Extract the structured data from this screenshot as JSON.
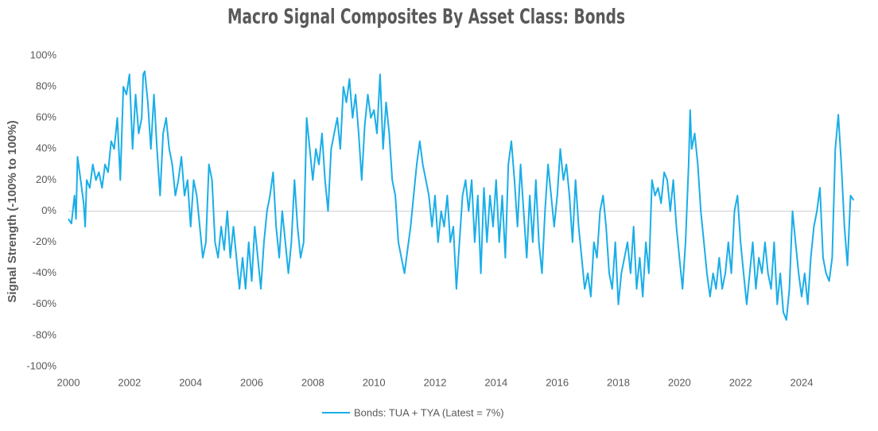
{
  "chart_data": {
    "type": "line",
    "title": "Macro Signal Composites By Asset Class: Bonds",
    "y_label": "Signal Strength (-100% to 100%)",
    "xlim": [
      2000,
      2025.9
    ],
    "xticks": [
      2000,
      2002,
      2004,
      2006,
      2008,
      2010,
      2012,
      2014,
      2016,
      2018,
      2020,
      2022,
      2024
    ],
    "ylim": [
      -100,
      100
    ],
    "yticks": [
      {
        "value": -100,
        "label": "-100%"
      },
      {
        "value": -80,
        "label": "-80%"
      },
      {
        "value": -60,
        "label": "-60%"
      },
      {
        "value": -40,
        "label": "-40%"
      },
      {
        "value": -20,
        "label": "-20%"
      },
      {
        "value": 0,
        "label": "0%"
      },
      {
        "value": 20,
        "label": "20%"
      },
      {
        "value": 40,
        "label": "40%"
      },
      {
        "value": 60,
        "label": "60%"
      },
      {
        "value": 80,
        "label": "80%"
      },
      {
        "value": 100,
        "label": "100%"
      }
    ],
    "zero_line": true,
    "legend": "bottom",
    "x": [
      2000.0,
      2000.1,
      2000.2,
      2000.25,
      2000.3,
      2000.4,
      2000.5,
      2000.55,
      2000.6,
      2000.7,
      2000.8,
      2000.9,
      2001.0,
      2001.1,
      2001.2,
      2001.3,
      2001.4,
      2001.5,
      2001.6,
      2001.7,
      2001.8,
      2001.9,
      2002.0,
      2002.1,
      2002.2,
      2002.3,
      2002.4,
      2002.45,
      2002.5,
      2002.6,
      2002.7,
      2002.8,
      2002.9,
      2003.0,
      2003.1,
      2003.2,
      2003.3,
      2003.4,
      2003.5,
      2003.6,
      2003.7,
      2003.8,
      2003.9,
      2004.0,
      2004.1,
      2004.2,
      2004.3,
      2004.4,
      2004.5,
      2004.6,
      2004.7,
      2004.8,
      2004.9,
      2005.0,
      2005.1,
      2005.2,
      2005.3,
      2005.4,
      2005.5,
      2005.6,
      2005.7,
      2005.8,
      2005.9,
      2006.0,
      2006.1,
      2006.2,
      2006.3,
      2006.4,
      2006.5,
      2006.6,
      2006.7,
      2006.8,
      2006.9,
      2007.0,
      2007.1,
      2007.2,
      2007.3,
      2007.4,
      2007.5,
      2007.6,
      2007.7,
      2007.8,
      2007.9,
      2008.0,
      2008.1,
      2008.2,
      2008.3,
      2008.4,
      2008.5,
      2008.6,
      2008.7,
      2008.8,
      2008.9,
      2009.0,
      2009.1,
      2009.2,
      2009.3,
      2009.4,
      2009.5,
      2009.6,
      2009.7,
      2009.8,
      2009.9,
      2010.0,
      2010.1,
      2010.2,
      2010.3,
      2010.4,
      2010.5,
      2010.6,
      2010.7,
      2010.8,
      2010.9,
      2011.0,
      2011.1,
      2011.2,
      2011.3,
      2011.4,
      2011.5,
      2011.6,
      2011.7,
      2011.8,
      2011.9,
      2012.0,
      2012.1,
      2012.2,
      2012.3,
      2012.4,
      2012.5,
      2012.6,
      2012.7,
      2012.8,
      2012.9,
      2013.0,
      2013.1,
      2013.2,
      2013.3,
      2013.4,
      2013.5,
      2013.6,
      2013.7,
      2013.8,
      2013.9,
      2014.0,
      2014.1,
      2014.2,
      2014.3,
      2014.4,
      2014.5,
      2014.6,
      2014.7,
      2014.8,
      2014.9,
      2015.0,
      2015.1,
      2015.2,
      2015.3,
      2015.4,
      2015.5,
      2015.6,
      2015.7,
      2015.8,
      2015.9,
      2016.0,
      2016.1,
      2016.2,
      2016.3,
      2016.4,
      2016.5,
      2016.6,
      2016.7,
      2016.8,
      2016.9,
      2017.0,
      2017.1,
      2017.2,
      2017.3,
      2017.4,
      2017.5,
      2017.6,
      2017.7,
      2017.8,
      2017.9,
      2018.0,
      2018.1,
      2018.2,
      2018.3,
      2018.4,
      2018.5,
      2018.6,
      2018.7,
      2018.8,
      2018.9,
      2019.0,
      2019.1,
      2019.2,
      2019.3,
      2019.4,
      2019.5,
      2019.6,
      2019.7,
      2019.8,
      2019.9,
      2020.0,
      2020.1,
      2020.2,
      2020.3,
      2020.35,
      2020.4,
      2020.5,
      2020.6,
      2020.7,
      2020.8,
      2020.9,
      2021.0,
      2021.1,
      2021.2,
      2021.3,
      2021.4,
      2021.5,
      2021.6,
      2021.7,
      2021.8,
      2021.9,
      2022.0,
      2022.1,
      2022.2,
      2022.3,
      2022.4,
      2022.5,
      2022.6,
      2022.7,
      2022.8,
      2022.9,
      2023.0,
      2023.1,
      2023.2,
      2023.3,
      2023.4,
      2023.5,
      2023.6,
      2023.7,
      2023.8,
      2023.9,
      2024.0,
      2024.1,
      2024.2,
      2024.3,
      2024.4,
      2024.5,
      2024.6,
      2024.7,
      2024.8,
      2024.9,
      2025.0,
      2025.1,
      2025.2,
      2025.3,
      2025.4,
      2025.5,
      2025.6,
      2025.7
    ],
    "series": [
      {
        "name": "Bonds: TUA + TYA (Latest = 7%)",
        "color": "#1aaee8",
        "values": [
          -5,
          -8,
          10,
          -5,
          35,
          20,
          5,
          -10,
          20,
          15,
          30,
          20,
          25,
          15,
          30,
          25,
          45,
          40,
          60,
          20,
          80,
          75,
          88,
          40,
          75,
          50,
          60,
          88,
          90,
          70,
          40,
          75,
          40,
          10,
          50,
          60,
          40,
          30,
          10,
          20,
          35,
          10,
          20,
          -10,
          20,
          10,
          -10,
          -30,
          -20,
          30,
          20,
          -20,
          -30,
          -10,
          -25,
          0,
          -30,
          -10,
          -30,
          -50,
          -30,
          -50,
          -20,
          -45,
          -10,
          -30,
          -50,
          -20,
          0,
          10,
          25,
          -10,
          -30,
          0,
          -20,
          -40,
          -20,
          20,
          -10,
          -30,
          -20,
          60,
          40,
          20,
          40,
          30,
          50,
          20,
          0,
          40,
          50,
          60,
          40,
          80,
          70,
          85,
          60,
          75,
          50,
          20,
          55,
          75,
          60,
          65,
          50,
          88,
          40,
          70,
          50,
          20,
          10,
          -20,
          -30,
          -40,
          -25,
          -10,
          10,
          30,
          45,
          30,
          20,
          10,
          -10,
          10,
          -20,
          0,
          -10,
          10,
          -20,
          -10,
          -50,
          -20,
          10,
          20,
          0,
          20,
          -20,
          10,
          -40,
          15,
          -20,
          10,
          -10,
          20,
          -20,
          10,
          -30,
          30,
          45,
          20,
          -10,
          30,
          0,
          -30,
          10,
          -20,
          20,
          -20,
          -40,
          0,
          30,
          10,
          -10,
          10,
          40,
          20,
          30,
          10,
          -20,
          20,
          -10,
          -30,
          -50,
          -40,
          -55,
          -20,
          -30,
          0,
          10,
          -10,
          -40,
          -50,
          -20,
          -60,
          -40,
          -30,
          -20,
          -40,
          -10,
          -50,
          -30,
          -55,
          -20,
          -40,
          20,
          10,
          15,
          5,
          25,
          20,
          0,
          20,
          -10,
          -30,
          -50,
          -20,
          30,
          65,
          40,
          50,
          30,
          0,
          -20,
          -40,
          -55,
          -40,
          -50,
          -30,
          -50,
          -40,
          -20,
          -40,
          0,
          10,
          -20,
          -40,
          -60,
          -40,
          -20,
          -50,
          -30,
          -40,
          -20,
          -40,
          -50,
          -20,
          -60,
          -40,
          -65,
          -70,
          -50,
          0,
          -20,
          -40,
          -55,
          -40,
          -60,
          -30,
          -10,
          0,
          15,
          -30,
          -40,
          -45,
          -30,
          40,
          62,
          30,
          -10,
          -35,
          10,
          7
        ]
      }
    ]
  }
}
